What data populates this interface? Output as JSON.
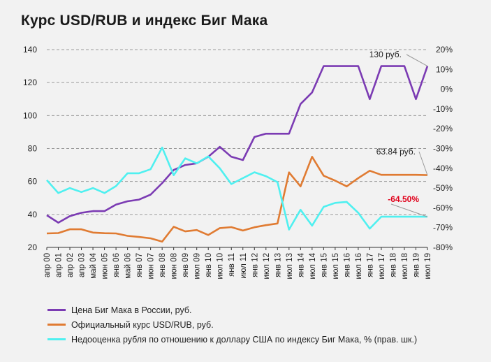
{
  "title": "Курс USD/RUB и индекс Биг Мака",
  "chart_data": {
    "type": "line",
    "categories": [
      "апр 00",
      "апр 01",
      "апр 02",
      "апр 03",
      "май 04",
      "июн 05",
      "янв 06",
      "май 06",
      "янв 07",
      "июн 07",
      "янв 08",
      "июн 08",
      "янв 09",
      "июл 09",
      "янв 10",
      "июл 10",
      "янв 11",
      "июл 11",
      "янв 12",
      "июл 12",
      "янв 13",
      "июл 13",
      "янв 14",
      "июл 14",
      "янв 15",
      "июл 15",
      "янв 16",
      "июл 16",
      "янв 17",
      "июл 17",
      "янв 18",
      "июл 18",
      "янв 19",
      "июл 19"
    ],
    "y_left": {
      "min": 20,
      "max": 140,
      "ticks": [
        20,
        40,
        60,
        80,
        100,
        120,
        140
      ]
    },
    "y_right": {
      "min": -80,
      "max": 20,
      "ticks": [
        "20%",
        "10%",
        "0%",
        "-10%",
        "-20%",
        "-30%",
        "-40%",
        "-50%",
        "-60%",
        "-70%",
        "-80%"
      ]
    },
    "grid": true,
    "legend_position": "bottom-left",
    "series": [
      {
        "name": "Цена Биг Мака в России, руб.",
        "color": "#7b3bb3",
        "axis": "left",
        "values": [
          39.5,
          35,
          39,
          41,
          42,
          42,
          46,
          48,
          49,
          52,
          59,
          67,
          70,
          71,
          75,
          81,
          75,
          73,
          87,
          89,
          89,
          89,
          107,
          114,
          130,
          130,
          130,
          130,
          110,
          130,
          130,
          130,
          110,
          130
        ]
      },
      {
        "name": "Официальный курс USD/RUB, руб.",
        "color": "#e07b32",
        "axis": "left",
        "values": [
          28.5,
          28.7,
          31,
          31,
          29,
          28.6,
          28.5,
          27,
          26.3,
          25.5,
          23.5,
          32.5,
          29.7,
          30.5,
          27.5,
          31.7,
          32.3,
          30.2,
          32.2,
          33.5,
          34.5,
          65.5,
          57,
          75,
          63.5,
          60.5,
          57,
          62,
          66.5,
          64,
          64,
          64,
          64,
          63.84
        ]
      },
      {
        "name": "Недооценка рубля по отношению к доллару США по индексу Биг Мака, % (прав. шк.)",
        "color": "#4ff0f0",
        "axis": "right",
        "values": [
          -46,
          -52.5,
          -50,
          -52,
          -50,
          -52.5,
          -49,
          -42.5,
          -42.5,
          -40.5,
          -29.5,
          -43.5,
          -35,
          -37.5,
          -34,
          -40,
          -48,
          -45,
          -42,
          -44,
          -47,
          -71,
          -61,
          -69,
          -59.5,
          -57.5,
          -57,
          -62.5,
          -70.5,
          -64.5,
          -64.5,
          -64.5,
          -64.5,
          -64.5
        ]
      }
    ],
    "annotations": {
      "big_mac_last": "130 руб.",
      "usdrub_last": "63.84 руб.",
      "undervaluation_last": "-64.50%"
    }
  }
}
